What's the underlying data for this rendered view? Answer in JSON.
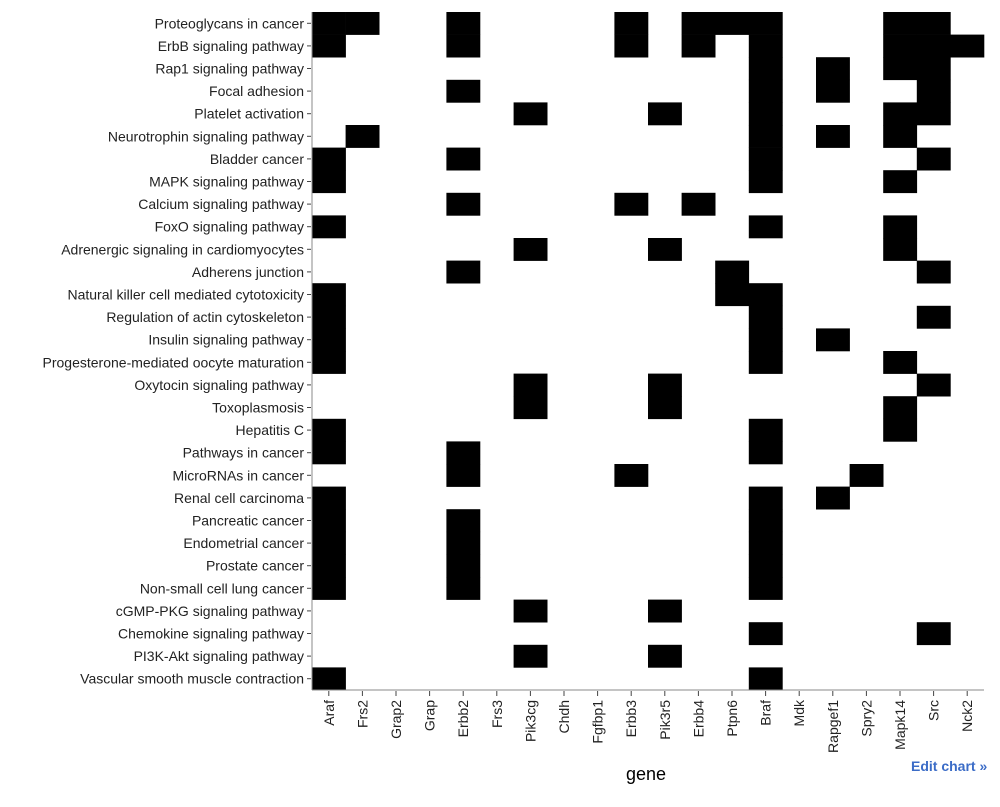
{
  "chart_data": {
    "type": "heatmap",
    "xlabel": "gene",
    "ylabel": "",
    "colors": {
      "filled": "#000000",
      "empty": "#ffffff"
    },
    "genes": [
      "Araf",
      "Frs2",
      "Grap2",
      "Grap",
      "Erbb2",
      "Frs3",
      "Pik3cg",
      "Chdh",
      "Fgfbp1",
      "Erbb3",
      "Pik3r5",
      "Erbb4",
      "Ptpn6",
      "Braf",
      "Mdk",
      "Rapgef1",
      "Spry2",
      "Mapk14",
      "Src",
      "Nck2"
    ],
    "pathways": [
      {
        "name": "Proteoglycans in cancer",
        "genes": [
          "Araf",
          "Frs2",
          "Erbb2",
          "Erbb3",
          "Erbb4",
          "Ptpn6",
          "Braf",
          "Mapk14",
          "Src"
        ]
      },
      {
        "name": "ErbB signaling pathway",
        "genes": [
          "Araf",
          "Erbb2",
          "Erbb3",
          "Erbb4",
          "Braf",
          "Mapk14",
          "Src",
          "Nck2"
        ]
      },
      {
        "name": "Rap1 signaling pathway",
        "genes": [
          "Braf",
          "Rapgef1",
          "Mapk14",
          "Src"
        ]
      },
      {
        "name": "Focal adhesion",
        "genes": [
          "Erbb2",
          "Braf",
          "Rapgef1",
          "Src"
        ]
      },
      {
        "name": "Platelet activation",
        "genes": [
          "Pik3cg",
          "Pik3r5",
          "Braf",
          "Mapk14",
          "Src"
        ]
      },
      {
        "name": "Neurotrophin signaling pathway",
        "genes": [
          "Frs2",
          "Braf",
          "Rapgef1",
          "Mapk14"
        ]
      },
      {
        "name": "Bladder cancer",
        "genes": [
          "Araf",
          "Erbb2",
          "Braf",
          "Src"
        ]
      },
      {
        "name": "MAPK signaling pathway",
        "genes": [
          "Araf",
          "Braf",
          "Mapk14"
        ]
      },
      {
        "name": "Calcium signaling pathway",
        "genes": [
          "Erbb2",
          "Erbb3",
          "Erbb4"
        ]
      },
      {
        "name": "FoxO signaling pathway",
        "genes": [
          "Araf",
          "Braf",
          "Mapk14"
        ]
      },
      {
        "name": "Adrenergic signaling in cardiomyocytes",
        "genes": [
          "Pik3cg",
          "Pik3r5",
          "Mapk14"
        ]
      },
      {
        "name": "Adherens junction",
        "genes": [
          "Erbb2",
          "Ptpn6",
          "Src"
        ]
      },
      {
        "name": "Natural killer cell mediated cytotoxicity",
        "genes": [
          "Araf",
          "Ptpn6",
          "Braf"
        ]
      },
      {
        "name": "Regulation of actin cytoskeleton",
        "genes": [
          "Araf",
          "Braf",
          "Src"
        ]
      },
      {
        "name": "Insulin signaling pathway",
        "genes": [
          "Araf",
          "Braf",
          "Rapgef1"
        ]
      },
      {
        "name": "Progesterone-mediated oocyte maturation",
        "genes": [
          "Araf",
          "Braf",
          "Mapk14"
        ]
      },
      {
        "name": "Oxytocin signaling pathway",
        "genes": [
          "Pik3cg",
          "Pik3r5",
          "Src"
        ]
      },
      {
        "name": "Toxoplasmosis",
        "genes": [
          "Pik3cg",
          "Pik3r5",
          "Mapk14"
        ]
      },
      {
        "name": "Hepatitis C",
        "genes": [
          "Araf",
          "Braf",
          "Mapk14"
        ]
      },
      {
        "name": "Pathways in cancer",
        "genes": [
          "Araf",
          "Erbb2",
          "Braf"
        ]
      },
      {
        "name": "MicroRNAs in cancer",
        "genes": [
          "Erbb2",
          "Erbb3",
          "Spry2"
        ]
      },
      {
        "name": "Renal cell carcinoma",
        "genes": [
          "Araf",
          "Braf",
          "Rapgef1"
        ]
      },
      {
        "name": "Pancreatic cancer",
        "genes": [
          "Araf",
          "Erbb2",
          "Braf"
        ]
      },
      {
        "name": "Endometrial cancer",
        "genes": [
          "Araf",
          "Erbb2",
          "Braf"
        ]
      },
      {
        "name": "Prostate cancer",
        "genes": [
          "Araf",
          "Erbb2",
          "Braf"
        ]
      },
      {
        "name": "Non-small cell lung cancer",
        "genes": [
          "Araf",
          "Erbb2",
          "Braf"
        ]
      },
      {
        "name": "cGMP-PKG signaling pathway",
        "genes": [
          "Pik3cg",
          "Pik3r5"
        ]
      },
      {
        "name": "Chemokine signaling pathway",
        "genes": [
          "Braf",
          "Src"
        ]
      },
      {
        "name": "PI3K-Akt signaling pathway",
        "genes": [
          "Pik3cg",
          "Pik3r5"
        ]
      },
      {
        "name": "Vascular smooth muscle contraction",
        "genes": [
          "Araf",
          "Braf"
        ]
      }
    ]
  },
  "links": {
    "edit_chart": "Edit chart »"
  }
}
